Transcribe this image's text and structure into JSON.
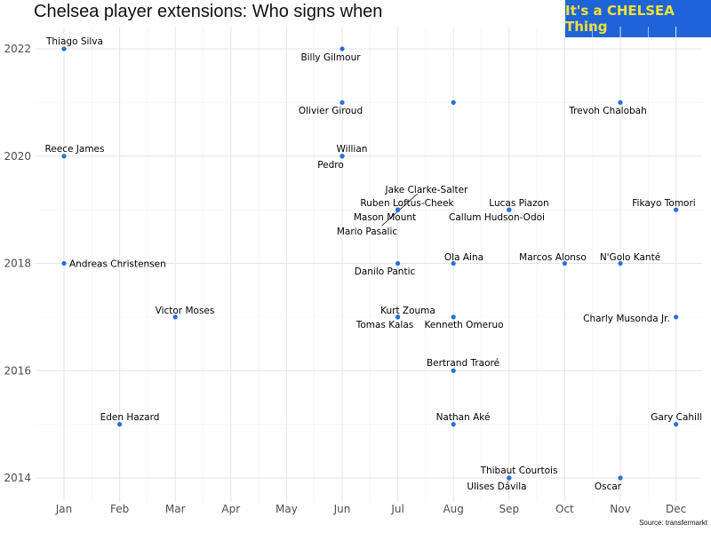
{
  "title": "Chelsea player extensions: Who signs when",
  "badge": {
    "text": "It's a CHELSEA Thing",
    "color": "#1f63d8",
    "text_color": "#f3e236"
  },
  "source": "Source: transfermarkt",
  "chart_data": {
    "type": "scatter",
    "title": "Chelsea player extensions: Who signs when",
    "xlabel": "",
    "ylabel": "",
    "x_categories": [
      "Jan",
      "Feb",
      "Mar",
      "Apr",
      "May",
      "Jun",
      "Jul",
      "Aug",
      "Sep",
      "Oct",
      "Nov",
      "Dec"
    ],
    "y_ticks": [
      2014,
      2016,
      2018,
      2020,
      2022
    ],
    "ylim": [
      2013.5,
      2022.5
    ],
    "grid": true,
    "point_color": "#2a6ed6",
    "points": [
      {
        "label": "Thiago Silva",
        "month": "Jan",
        "year": 2022,
        "label_pos": "above"
      },
      {
        "label": "Billy Gilmour",
        "month": "Jun",
        "year": 2022,
        "label_pos": "below"
      },
      {
        "label": "Olivier Giroud",
        "month": "Jun",
        "year": 2021,
        "label_pos": "below-left"
      },
      {
        "label": "",
        "month": "Aug",
        "year": 2021,
        "label_pos": "none"
      },
      {
        "label": "Trevoh Chalobah",
        "month": "Nov",
        "year": 2021,
        "label_pos": "below-left"
      },
      {
        "label": "Reece James",
        "month": "Jan",
        "year": 2020,
        "label_pos": "above-right"
      },
      {
        "label": "Willian",
        "month": "Jun",
        "year": 2020,
        "label_pos": "above-right"
      },
      {
        "label": "Pedro",
        "month": "Jun",
        "year": 2020,
        "label_pos": "below-left"
      },
      {
        "label": "Jake Clarke-Salter",
        "month": "Jul",
        "year": 2019,
        "label_pos": "custom"
      },
      {
        "label": "Ruben Loftus-Cheek",
        "month": "Jul",
        "year": 2019,
        "label_pos": "custom"
      },
      {
        "label": "Mason Mount",
        "month": "Jul",
        "year": 2019,
        "label_pos": "custom"
      },
      {
        "label": "Mario Pasalic",
        "month": "Jul",
        "year": 2019,
        "label_pos": "custom"
      },
      {
        "label": "Lucas Piazon",
        "month": "Sep",
        "year": 2019,
        "label_pos": "above-right"
      },
      {
        "label": "Callum Hudson-Odoi",
        "month": "Sep",
        "year": 2019,
        "label_pos": "below-left"
      },
      {
        "label": "Fikayo Tomori",
        "month": "Dec",
        "year": 2019,
        "label_pos": "above-left"
      },
      {
        "label": "Andreas Christensen",
        "month": "Jan",
        "year": 2018,
        "label_pos": "right"
      },
      {
        "label": "Danilo Pantic",
        "month": "Jul",
        "year": 2018,
        "label_pos": "below-left"
      },
      {
        "label": "Ola Aina",
        "month": "Aug",
        "year": 2018,
        "label_pos": "above-right"
      },
      {
        "label": "Marcos Alonso",
        "month": "Oct",
        "year": 2018,
        "label_pos": "above-left"
      },
      {
        "label": "N'Golo Kanté",
        "month": "Nov",
        "year": 2018,
        "label_pos": "above-right"
      },
      {
        "label": "Victor Moses",
        "month": "Mar",
        "year": 2017,
        "label_pos": "above-right"
      },
      {
        "label": "Kurt Zouma",
        "month": "Jul",
        "year": 2017,
        "label_pos": "above-right"
      },
      {
        "label": "Tomas Kalas",
        "month": "Jul",
        "year": 2017,
        "label_pos": "below-left"
      },
      {
        "label": "Kenneth Omeruo",
        "month": "Aug",
        "year": 2017,
        "label_pos": "below-right"
      },
      {
        "label": "Charly Musonda Jr.",
        "month": "Dec",
        "year": 2017,
        "label_pos": "below-left"
      },
      {
        "label": "Bertrand Traoré",
        "month": "Aug",
        "year": 2016,
        "label_pos": "above-right"
      },
      {
        "label": "Eden Hazard",
        "month": "Feb",
        "year": 2015,
        "label_pos": "above-right"
      },
      {
        "label": "Nathan Aké",
        "month": "Aug",
        "year": 2015,
        "label_pos": "above-right"
      },
      {
        "label": "Gary Cahill",
        "month": "Dec",
        "year": 2015,
        "label_pos": "above-right"
      },
      {
        "label": "Thibaut Courtois",
        "month": "Sep",
        "year": 2014,
        "label_pos": "above-right"
      },
      {
        "label": "Ulises Dávila",
        "month": "Sep",
        "year": 2014,
        "label_pos": "below-left"
      },
      {
        "label": "Oscar",
        "month": "Nov",
        "year": 2014,
        "label_pos": "below-left"
      }
    ]
  }
}
